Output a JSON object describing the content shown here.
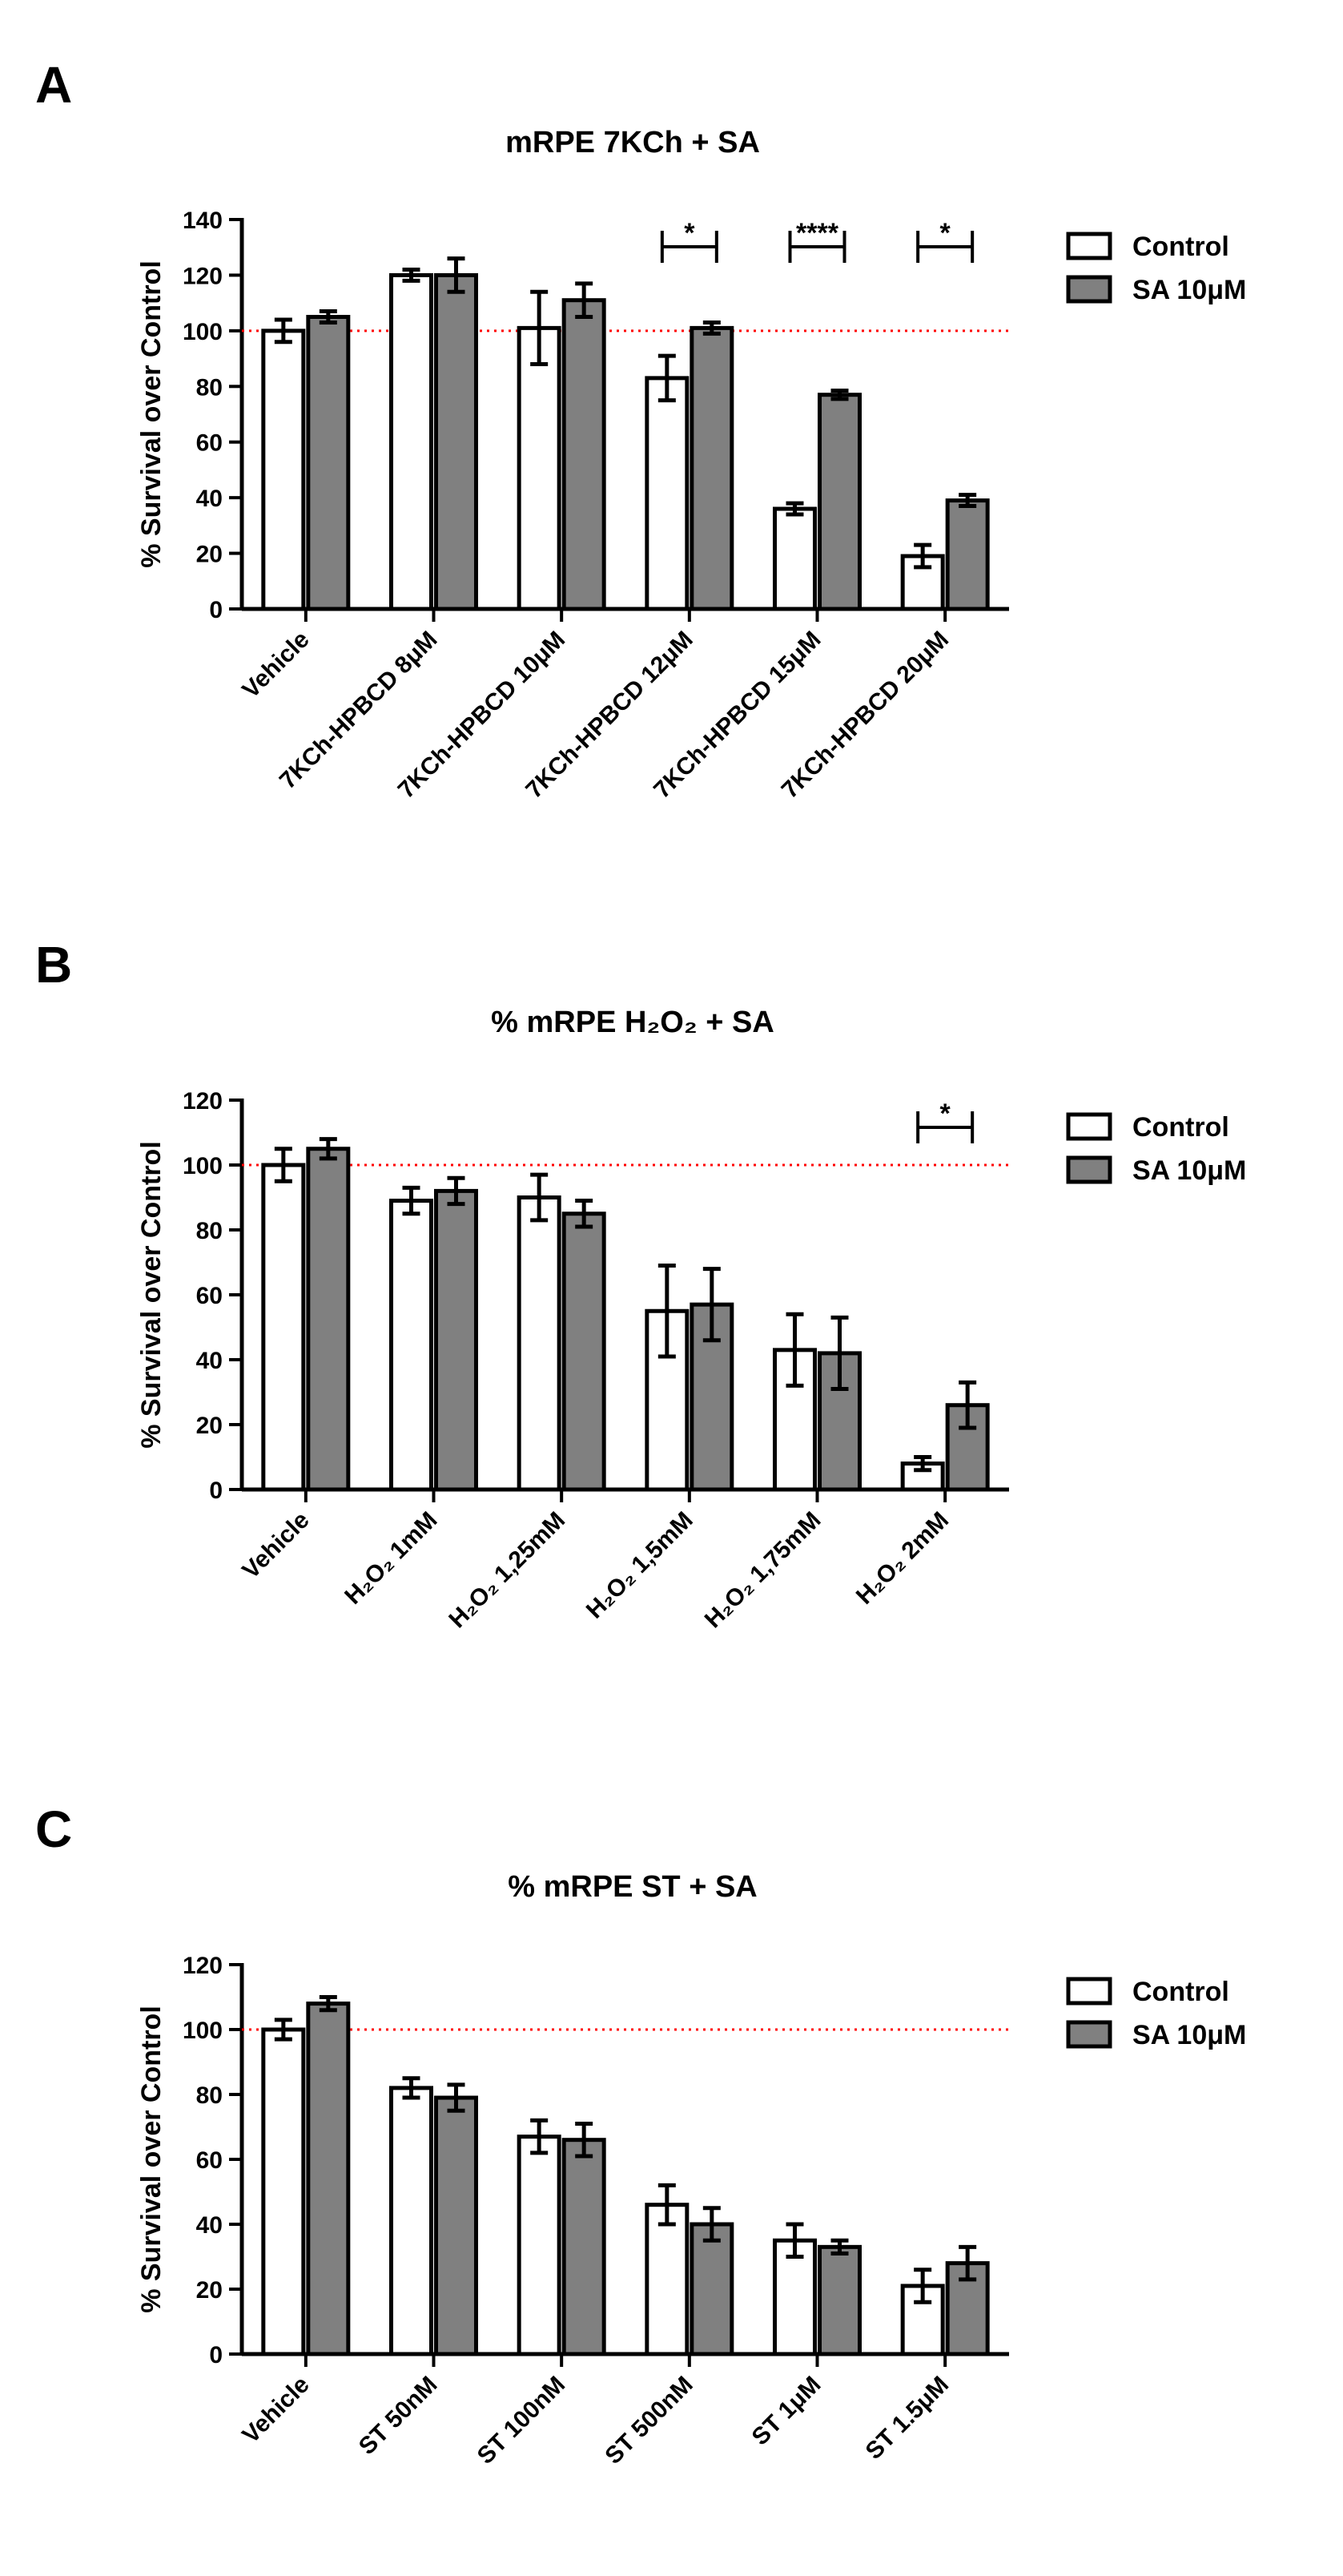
{
  "colors": {
    "control": "#ffffff",
    "sa": "#808080",
    "stroke": "#000000",
    "reference": "#ff0000"
  },
  "legend": {
    "control": "Control",
    "sa": "SA 10μM"
  },
  "chart_data": [
    {
      "type": "bar",
      "panel": "A",
      "title": "mRPE 7KCh + SA",
      "ylabel": "% Survival over Control",
      "xlabel": "",
      "ylim": [
        0,
        140
      ],
      "yticks": [
        0,
        20,
        40,
        60,
        80,
        100,
        120,
        140
      ],
      "reference_line": 100,
      "categories": [
        "Vehicle",
        "7KCh-HPBCD 8μM",
        "7KCh-HPBCD 10μM",
        "7KCh-HPBCD 12μM",
        "7KCh-HPBCD 15μM",
        "7KCh-HPBCD 20μM"
      ],
      "series": [
        {
          "name": "Control",
          "values": [
            100,
            120,
            101,
            83,
            36,
            19
          ],
          "errors": [
            4,
            2,
            13,
            8,
            2,
            4
          ]
        },
        {
          "name": "SA 10μM",
          "values": [
            105,
            120,
            111,
            101,
            77,
            39
          ],
          "errors": [
            2,
            6,
            6,
            2,
            1.5,
            2
          ]
        }
      ],
      "significance": [
        {
          "category": 3,
          "label": "*"
        },
        {
          "category": 4,
          "label": "****"
        },
        {
          "category": 5,
          "label": "*"
        }
      ]
    },
    {
      "type": "bar",
      "panel": "B",
      "title": "% mRPE H₂O₂ + SA",
      "ylabel": "% Survival over Control",
      "xlabel": "",
      "ylim": [
        0,
        120
      ],
      "yticks": [
        0,
        20,
        40,
        60,
        80,
        100,
        120
      ],
      "reference_line": 100,
      "categories": [
        "Vehicle",
        "H₂O₂ 1mM",
        "H₂O₂ 1,25mM",
        "H₂O₂ 1,5mM",
        "H₂O₂ 1,75mM",
        "H₂O₂ 2mM"
      ],
      "series": [
        {
          "name": "Control",
          "values": [
            100,
            89,
            90,
            55,
            43,
            8
          ],
          "errors": [
            5,
            4,
            7,
            14,
            11,
            2
          ]
        },
        {
          "name": "SA 10μM",
          "values": [
            105,
            92,
            85,
            57,
            42,
            26
          ],
          "errors": [
            3,
            4,
            4,
            11,
            11,
            7
          ]
        }
      ],
      "significance": [
        {
          "category": 5,
          "label": "*"
        }
      ]
    },
    {
      "type": "bar",
      "panel": "C",
      "title": "% mRPE ST + SA",
      "ylabel": "% Survival over Control",
      "xlabel": "",
      "ylim": [
        0,
        120
      ],
      "yticks": [
        0,
        20,
        40,
        60,
        80,
        100,
        120
      ],
      "reference_line": 100,
      "categories": [
        "Vehicle",
        "ST 50nM",
        "ST 100nM",
        "ST 500nM",
        "ST 1μM",
        "ST 1.5μM"
      ],
      "series": [
        {
          "name": "Control",
          "values": [
            100,
            82,
            67,
            46,
            35,
            21
          ],
          "errors": [
            3,
            3,
            5,
            6,
            5,
            5
          ]
        },
        {
          "name": "SA 10μM",
          "values": [
            108,
            79,
            66,
            40,
            33,
            28
          ],
          "errors": [
            2,
            4,
            5,
            5,
            2,
            5
          ]
        }
      ],
      "significance": []
    }
  ]
}
